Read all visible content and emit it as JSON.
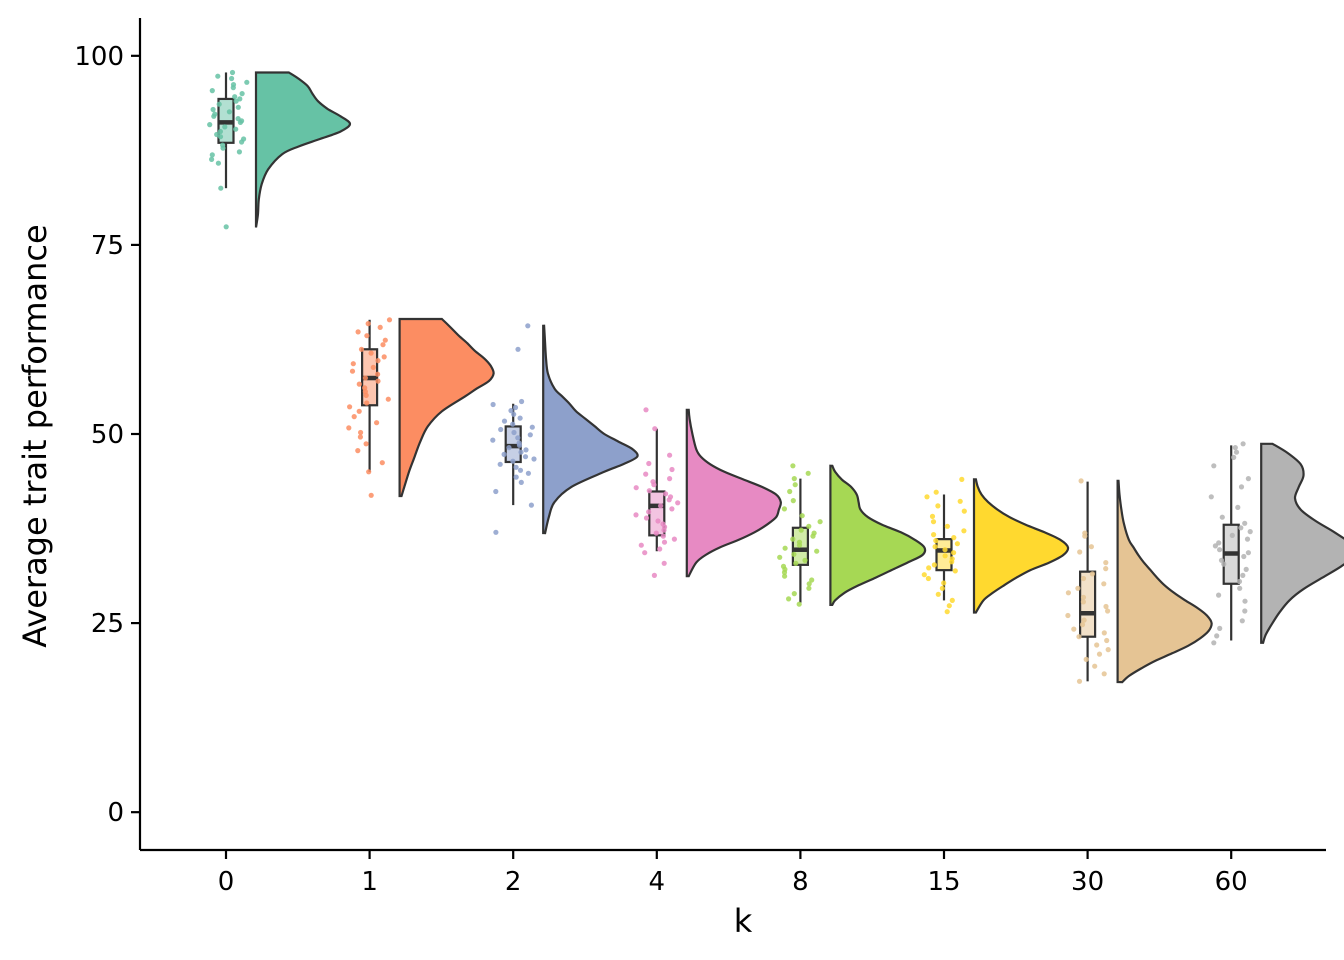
{
  "chart_data": {
    "type": "raincloud",
    "xlabel": "k",
    "ylabel": "Average trait performance",
    "ylim": [
      -5,
      105
    ],
    "y_ticks": [
      0,
      25,
      50,
      75,
      100
    ],
    "grid": false,
    "legend": "none",
    "categories": [
      "0",
      "1",
      "2",
      "4",
      "8",
      "15",
      "30",
      "60"
    ],
    "groups": [
      {
        "category": "0",
        "color": "#66C2A5",
        "box": {
          "min": 82.5,
          "q1": 88.5,
          "median": 91.2,
          "q3": 94.3,
          "max": 97.8
        },
        "violin": {
          "min": 77.3,
          "max": 97.8,
          "mode": 91.0,
          "density": [
            [
              77.3,
              0.0
            ],
            [
              79,
              0.02
            ],
            [
              81,
              0.03
            ],
            [
              83,
              0.06
            ],
            [
              85,
              0.13
            ],
            [
              87,
              0.28
            ],
            [
              88,
              0.45
            ],
            [
              89,
              0.68
            ],
            [
              90,
              0.9
            ],
            [
              91,
              1.0
            ],
            [
              92,
              0.9
            ],
            [
              93,
              0.76
            ],
            [
              94,
              0.66
            ],
            [
              95,
              0.6
            ],
            [
              96,
              0.55
            ],
            [
              97,
              0.45
            ],
            [
              97.8,
              0.35
            ]
          ]
        },
        "points": [
          97.8,
          97.3,
          97.0,
          96.5,
          96.2,
          95.8,
          95.4,
          95.0,
          94.6,
          94.3,
          94.0,
          93.6,
          93.2,
          92.9,
          92.6,
          92.3,
          92.0,
          91.7,
          91.4,
          91.2,
          90.9,
          90.6,
          90.3,
          90.0,
          89.6,
          89.3,
          89.0,
          88.6,
          88.2,
          87.8,
          87.3,
          86.9,
          86.3,
          85.8,
          82.5,
          77.4
        ]
      },
      {
        "category": "1",
        "color": "#FC8D62",
        "box": {
          "min": 45.0,
          "q1": 53.8,
          "median": 57.4,
          "q3": 61.2,
          "max": 65.1
        },
        "violin": {
          "min": 41.8,
          "max": 65.2,
          "mode": 58.0,
          "density": [
            [
              41.8,
              0.02
            ],
            [
              43,
              0.05
            ],
            [
              45,
              0.1
            ],
            [
              47,
              0.16
            ],
            [
              49,
              0.22
            ],
            [
              51,
              0.3
            ],
            [
              53,
              0.45
            ],
            [
              55,
              0.7
            ],
            [
              56,
              0.82
            ],
            [
              57,
              0.95
            ],
            [
              58,
              1.0
            ],
            [
              59,
              0.97
            ],
            [
              60,
              0.9
            ],
            [
              61,
              0.8
            ],
            [
              62,
              0.72
            ],
            [
              63,
              0.63
            ],
            [
              64,
              0.55
            ],
            [
              65.2,
              0.45
            ]
          ]
        },
        "points": [
          65.1,
          64.6,
          64.1,
          63.5,
          63.0,
          62.4,
          61.8,
          61.2,
          60.7,
          60.2,
          59.7,
          59.3,
          58.8,
          58.3,
          57.9,
          57.4,
          57.0,
          56.6,
          56.1,
          55.6,
          55.1,
          54.6,
          54.1,
          53.6,
          53.0,
          52.3,
          51.5,
          50.8,
          50.2,
          49.6,
          48.7,
          47.8,
          46.2,
          45.0,
          41.9
        ]
      },
      {
        "category": "2",
        "color": "#8DA0CB",
        "box": {
          "min": 40.6,
          "q1": 46.3,
          "median": 48.4,
          "q3": 51.0,
          "max": 54.0
        },
        "violin": {
          "min": 36.9,
          "max": 64.3,
          "mode": 47.0,
          "density": [
            [
              36.9,
              0.02
            ],
            [
              39,
              0.06
            ],
            [
              41,
              0.12
            ],
            [
              43,
              0.3
            ],
            [
              45,
              0.65
            ],
            [
              46,
              0.85
            ],
            [
              47,
              1.0
            ],
            [
              48,
              0.95
            ],
            [
              49,
              0.8
            ],
            [
              50,
              0.65
            ],
            [
              51,
              0.55
            ],
            [
              52,
              0.45
            ],
            [
              53,
              0.35
            ],
            [
              54,
              0.28
            ],
            [
              55,
              0.2
            ],
            [
              56,
              0.12
            ],
            [
              58,
              0.05
            ],
            [
              60,
              0.03
            ],
            [
              62,
              0.02
            ],
            [
              64.3,
              0.01
            ]
          ]
        },
        "points": [
          64.3,
          61.2,
          54.3,
          53.9,
          53.5,
          53.1,
          52.6,
          52.1,
          51.7,
          51.3,
          50.9,
          50.6,
          50.2,
          49.9,
          49.5,
          49.2,
          48.8,
          48.5,
          48.2,
          47.9,
          47.6,
          47.3,
          47.0,
          46.7,
          46.4,
          46.0,
          45.6,
          45.2,
          44.8,
          44.3,
          43.6,
          42.4,
          40.6,
          37.0
        ]
      },
      {
        "category": "4",
        "color": "#E78AC3",
        "box": {
          "min": 34.5,
          "q1": 36.6,
          "median": 40.5,
          "q3": 42.4,
          "max": 50.7
        },
        "violin": {
          "min": 31.2,
          "max": 53.2,
          "mode": 41.0,
          "density": [
            [
              31.2,
              0.02
            ],
            [
              33,
              0.1
            ],
            [
              34,
              0.2
            ],
            [
              35,
              0.35
            ],
            [
              36,
              0.55
            ],
            [
              37,
              0.72
            ],
            [
              38,
              0.85
            ],
            [
              39,
              0.95
            ],
            [
              40,
              0.98
            ],
            [
              41,
              1.0
            ],
            [
              42,
              0.95
            ],
            [
              43,
              0.8
            ],
            [
              44,
              0.6
            ],
            [
              45,
              0.4
            ],
            [
              46,
              0.25
            ],
            [
              47,
              0.15
            ],
            [
              48,
              0.1
            ],
            [
              50,
              0.06
            ],
            [
              52,
              0.03
            ],
            [
              53.2,
              0.02
            ]
          ]
        },
        "points": [
          53.2,
          50.7,
          47.2,
          46.1,
          45.3,
          44.7,
          44.1,
          43.7,
          43.3,
          42.9,
          42.5,
          42.1,
          41.7,
          41.3,
          40.9,
          40.5,
          40.1,
          39.7,
          39.3,
          38.9,
          38.5,
          38.1,
          37.7,
          37.3,
          36.9,
          36.5,
          36.1,
          35.7,
          35.3,
          34.8,
          34.3,
          32.9,
          31.3
        ]
      },
      {
        "category": "8",
        "color": "#A6D854",
        "box": {
          "min": 27.7,
          "q1": 32.7,
          "median": 34.7,
          "q3": 37.6,
          "max": 44.1
        },
        "violin": {
          "min": 27.4,
          "max": 45.8,
          "mode": 34.3,
          "density": [
            [
              27.4,
              0.02
            ],
            [
              28,
              0.05
            ],
            [
              29,
              0.15
            ],
            [
              30,
              0.3
            ],
            [
              31,
              0.48
            ],
            [
              32,
              0.65
            ],
            [
              33,
              0.82
            ],
            [
              34,
              0.98
            ],
            [
              35,
              1.0
            ],
            [
              36,
              0.9
            ],
            [
              37,
              0.75
            ],
            [
              38,
              0.55
            ],
            [
              39,
              0.4
            ],
            [
              40,
              0.32
            ],
            [
              41,
              0.3
            ],
            [
              42,
              0.28
            ],
            [
              43,
              0.22
            ],
            [
              44,
              0.12
            ],
            [
              45,
              0.05
            ],
            [
              45.8,
              0.02
            ]
          ]
        },
        "points": [
          45.8,
          44.8,
          44.1,
          43.3,
          42.4,
          41.2,
          40.1,
          39.2,
          38.4,
          37.8,
          37.3,
          36.9,
          36.5,
          36.1,
          35.7,
          35.3,
          34.9,
          34.5,
          34.1,
          33.7,
          33.3,
          32.9,
          32.5,
          32.1,
          31.7,
          31.2,
          30.7,
          30.2,
          29.6,
          28.9,
          28.2,
          27.5
        ]
      },
      {
        "category": "15",
        "color": "#FFD92F",
        "box": {
          "min": 28.0,
          "q1": 32.0,
          "median": 34.6,
          "q3": 36.1,
          "max": 42.0
        },
        "violin": {
          "min": 26.4,
          "max": 44.0,
          "mode": 34.8,
          "density": [
            [
              26.4,
              0.02
            ],
            [
              28,
              0.1
            ],
            [
              29,
              0.2
            ],
            [
              30,
              0.32
            ],
            [
              31,
              0.45
            ],
            [
              32,
              0.6
            ],
            [
              33,
              0.8
            ],
            [
              34,
              0.95
            ],
            [
              35,
              1.0
            ],
            [
              36,
              0.92
            ],
            [
              37,
              0.75
            ],
            [
              38,
              0.55
            ],
            [
              39,
              0.38
            ],
            [
              40,
              0.25
            ],
            [
              41,
              0.15
            ],
            [
              42,
              0.08
            ],
            [
              43,
              0.04
            ],
            [
              44,
              0.02
            ]
          ]
        },
        "points": [
          44.0,
          42.3,
          41.7,
          41.1,
          40.5,
          39.8,
          39.1,
          38.4,
          37.8,
          37.2,
          36.7,
          36.3,
          35.9,
          35.5,
          35.1,
          34.7,
          34.3,
          33.9,
          33.5,
          33.1,
          32.7,
          32.3,
          31.9,
          31.4,
          30.9,
          30.3,
          29.6,
          28.8,
          28.0,
          27.3,
          26.5
        ]
      },
      {
        "category": "30",
        "color": "#E5C494",
        "box": {
          "min": 17.3,
          "q1": 23.2,
          "median": 26.3,
          "q3": 31.8,
          "max": 43.7
        },
        "violin": {
          "min": 17.2,
          "max": 43.8,
          "mode": 25.0,
          "density": [
            [
              17.2,
              0.05
            ],
            [
              18,
              0.12
            ],
            [
              19,
              0.25
            ],
            [
              20,
              0.4
            ],
            [
              21,
              0.58
            ],
            [
              22,
              0.75
            ],
            [
              23,
              0.88
            ],
            [
              24,
              0.97
            ],
            [
              25,
              1.0
            ],
            [
              26,
              0.95
            ],
            [
              27,
              0.85
            ],
            [
              28,
              0.72
            ],
            [
              29,
              0.6
            ],
            [
              30,
              0.5
            ],
            [
              31,
              0.42
            ],
            [
              32,
              0.35
            ],
            [
              33,
              0.28
            ],
            [
              34,
              0.22
            ],
            [
              35,
              0.17
            ],
            [
              36,
              0.12
            ],
            [
              38,
              0.07
            ],
            [
              40,
              0.04
            ],
            [
              42,
              0.02
            ],
            [
              43.8,
              0.01
            ]
          ]
        },
        "points": [
          43.8,
          36.9,
          36.5,
          35.1,
          34.4,
          33.0,
          32.2,
          31.5,
          30.9,
          30.2,
          29.6,
          29.0,
          28.4,
          27.8,
          27.2,
          26.6,
          26.0,
          25.4,
          24.8,
          24.2,
          23.7,
          23.2,
          22.7,
          22.1,
          21.5,
          20.9,
          20.2,
          19.3,
          18.3,
          17.3
        ]
      },
      {
        "category": "60",
        "color": "#B3B3B3",
        "box": {
          "min": 22.7,
          "q1": 30.2,
          "median": 34.2,
          "q3": 38.0,
          "max": 48.5
        },
        "violin": {
          "min": 22.4,
          "max": 48.7,
          "mode": 34.0,
          "density": [
            [
              22.4,
              0.02
            ],
            [
              23.5,
              0.05
            ],
            [
              25,
              0.12
            ],
            [
              26.5,
              0.2
            ],
            [
              28,
              0.3
            ],
            [
              29.5,
              0.45
            ],
            [
              31,
              0.65
            ],
            [
              32.5,
              0.85
            ],
            [
              34,
              1.0
            ],
            [
              35.5,
              0.95
            ],
            [
              37,
              0.78
            ],
            [
              38.5,
              0.58
            ],
            [
              40,
              0.42
            ],
            [
              41.5,
              0.36
            ],
            [
              43,
              0.4
            ],
            [
              44.5,
              0.45
            ],
            [
              46,
              0.42
            ],
            [
              47.5,
              0.28
            ],
            [
              48.7,
              0.12
            ]
          ]
        },
        "points": [
          48.7,
          48.2,
          47.6,
          46.9,
          45.8,
          44.1,
          43.0,
          41.7,
          40.3,
          39.0,
          38.2,
          37.6,
          37.1,
          36.6,
          36.1,
          35.6,
          35.2,
          34.7,
          34.3,
          33.8,
          33.3,
          32.8,
          32.1,
          31.3,
          30.5,
          29.6,
          28.7,
          27.9,
          26.6,
          25.3,
          24.3,
          23.3,
          22.4
        ]
      }
    ]
  }
}
